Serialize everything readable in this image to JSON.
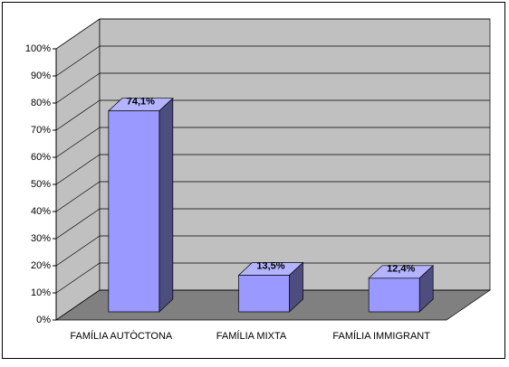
{
  "chart_data": {
    "type": "bar3d",
    "categories": [
      "FAMÍLIA AUTÒCTONA",
      "FAMÍLIA MIXTA",
      "FAMÍLIA IMMIGRANT"
    ],
    "values": [
      74.1,
      13.5,
      12.4
    ],
    "value_labels": [
      "74,1%",
      "13,5%",
      "12,4%"
    ],
    "color": "#9999ff",
    "ylim": [
      0,
      100
    ],
    "yticks": [
      {
        "value": 0,
        "label": "0%"
      },
      {
        "value": 10,
        "label": "10%"
      },
      {
        "value": 20,
        "label": "20%"
      },
      {
        "value": 30,
        "label": "30%"
      },
      {
        "value": 40,
        "label": "40%"
      },
      {
        "value": 50,
        "label": "50%"
      },
      {
        "value": 60,
        "label": "60%"
      },
      {
        "value": 70,
        "label": "70%"
      },
      {
        "value": 80,
        "label": "80%"
      },
      {
        "value": 90,
        "label": "90%"
      },
      {
        "value": 100,
        "label": "100%"
      }
    ],
    "grid": true
  }
}
